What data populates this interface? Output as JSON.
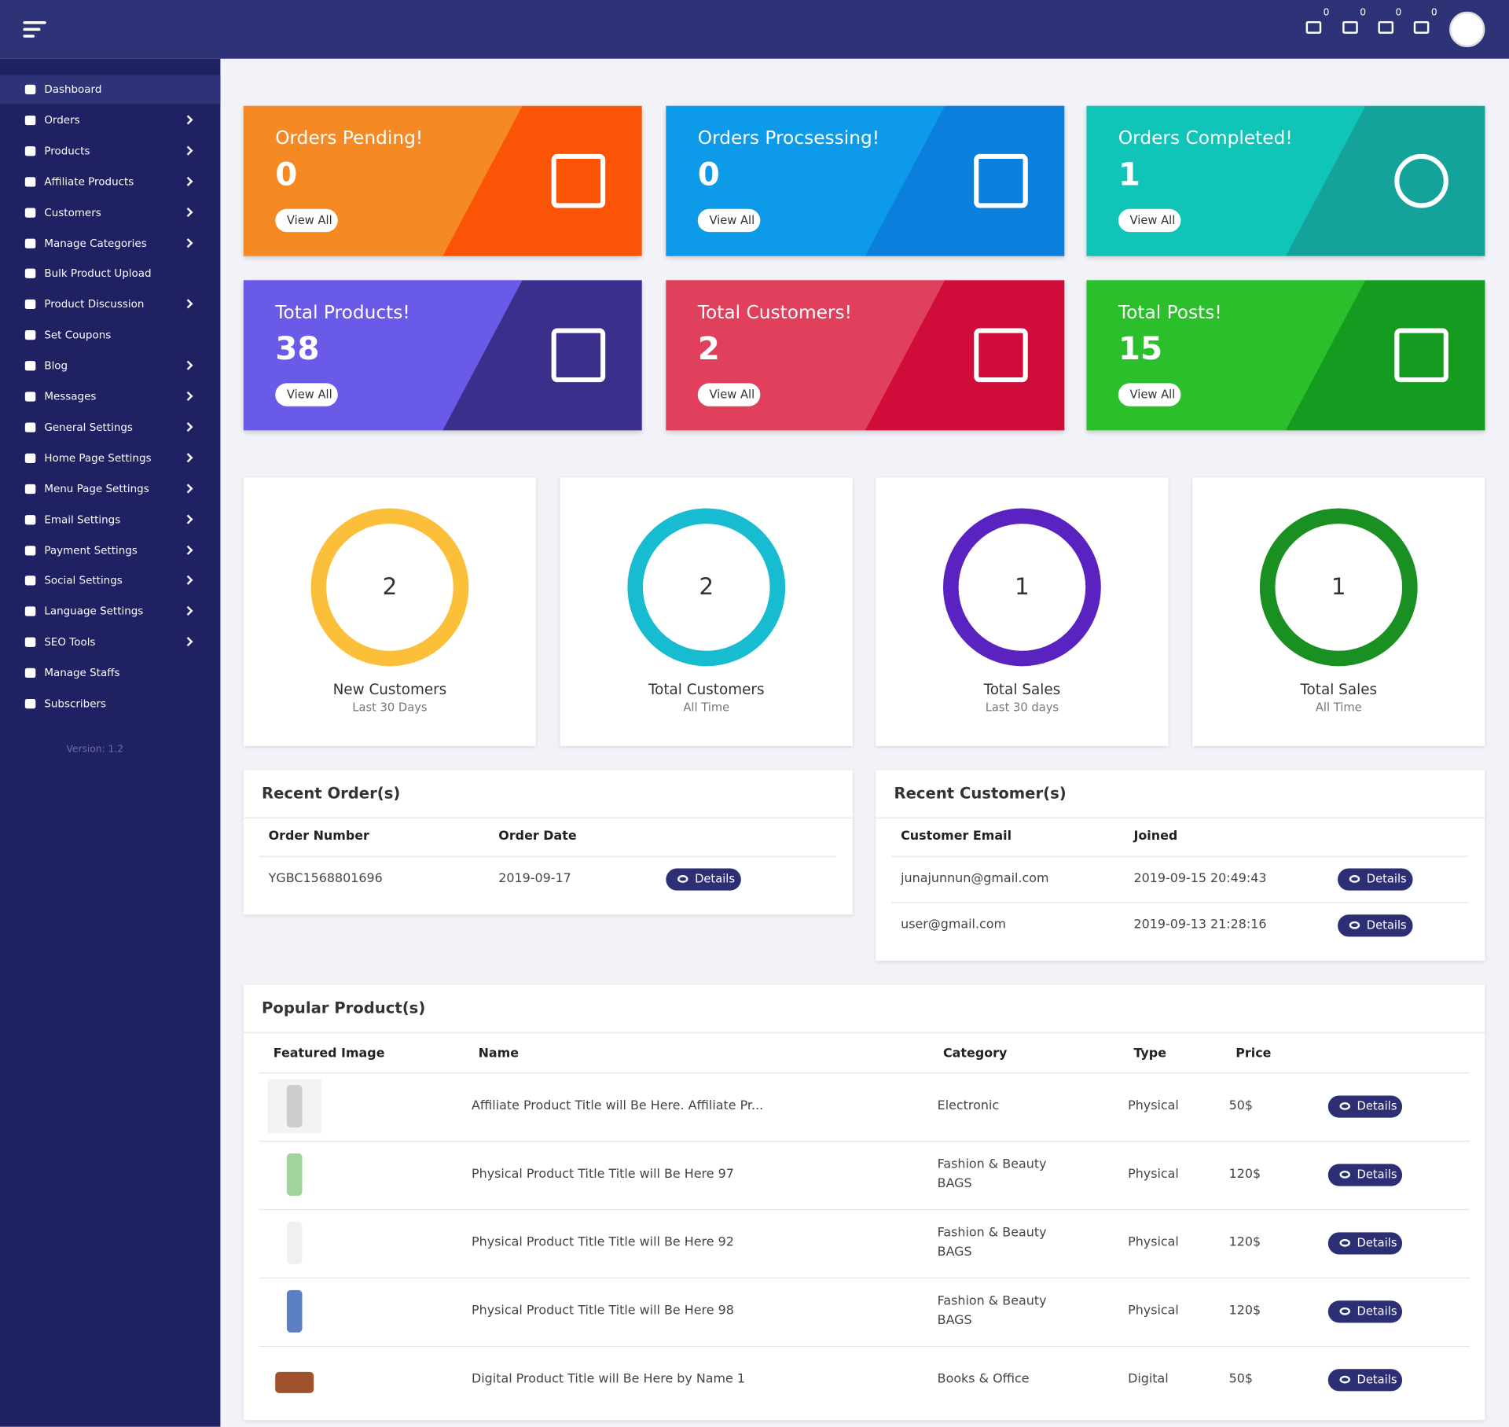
{
  "header": {
    "badges": [
      0,
      0,
      0,
      0
    ]
  },
  "sidebar": {
    "items": [
      {
        "label": "Dashboard",
        "submenu": false
      },
      {
        "label": "Orders",
        "submenu": true
      },
      {
        "label": "Products",
        "submenu": true
      },
      {
        "label": "Affiliate Products",
        "submenu": true
      },
      {
        "label": "Customers",
        "submenu": true
      },
      {
        "label": "Manage Categories",
        "submenu": true
      },
      {
        "label": "Bulk Product Upload",
        "submenu": false
      },
      {
        "label": "Product Discussion",
        "submenu": true
      },
      {
        "label": "Set Coupons",
        "submenu": false
      },
      {
        "label": "Blog",
        "submenu": true
      },
      {
        "label": "Messages",
        "submenu": true
      },
      {
        "label": "General Settings",
        "submenu": true
      },
      {
        "label": "Home Page Settings",
        "submenu": true
      },
      {
        "label": "Menu Page Settings",
        "submenu": true
      },
      {
        "label": "Email Settings",
        "submenu": true
      },
      {
        "label": "Payment Settings",
        "submenu": true
      },
      {
        "label": "Social Settings",
        "submenu": true
      },
      {
        "label": "Language Settings",
        "submenu": true
      },
      {
        "label": "SEO Tools",
        "submenu": true
      },
      {
        "label": "Manage Staffs",
        "submenu": false
      },
      {
        "label": "Subscribers",
        "submenu": false
      }
    ],
    "version": "Version: 1.2"
  },
  "stat_cards": [
    {
      "title": "Orders Pending!",
      "value": 0,
      "button": "View All"
    },
    {
      "title": "Orders Procsessing!",
      "value": 0,
      "button": "View All"
    },
    {
      "title": "Orders Completed!",
      "value": 1,
      "button": "View All"
    },
    {
      "title": "Total Products!",
      "value": 38,
      "button": "View All"
    },
    {
      "title": "Total Customers!",
      "value": 2,
      "button": "View All"
    },
    {
      "title": "Total Posts!",
      "value": 15,
      "button": "View All"
    }
  ],
  "summary_cards": [
    {
      "value": 2,
      "label": "New Customers",
      "period": "Last 30 Days"
    },
    {
      "value": 2,
      "label": "Total Customers",
      "period": "All Time"
    },
    {
      "value": 1,
      "label": "Total Sales",
      "period": "Last 30 days"
    },
    {
      "value": 1,
      "label": "Total Sales",
      "period": "All Time"
    }
  ],
  "recent_orders": {
    "title": "Recent Order(s)",
    "columns": [
      "Order Number",
      "Order Date"
    ],
    "rows": [
      {
        "number": "YGBC1568801696",
        "date": "2019-09-17",
        "action": "Details"
      }
    ]
  },
  "recent_customers": {
    "title": "Recent Customer(s)",
    "columns": [
      "Customer Email",
      "Joined"
    ],
    "rows": [
      {
        "email": "junajunnun@gmail.com",
        "joined": "2019-09-15 20:49:43",
        "action": "Details"
      },
      {
        "email": "user@gmail.com",
        "joined": "2019-09-13 21:28:16",
        "action": "Details"
      }
    ]
  },
  "popular_products": {
    "title": "Popular Product(s)",
    "columns": [
      "Featured Image",
      "Name",
      "Category",
      "Type",
      "Price"
    ],
    "rows": [
      {
        "name": "Affiliate Product Title will Be Here. Affiliate Pr...",
        "category": [
          "Electronic"
        ],
        "type": "Physical",
        "price": "50$",
        "action": "Details"
      },
      {
        "name": "Physical Product Title Title will Be Here 97",
        "category": [
          "Fashion & Beauty",
          "BAGS"
        ],
        "type": "Physical",
        "price": "120$",
        "action": "Details"
      },
      {
        "name": "Physical Product Title Title will Be Here 92",
        "category": [
          "Fashion & Beauty",
          "BAGS"
        ],
        "type": "Physical",
        "price": "120$",
        "action": "Details"
      },
      {
        "name": "Physical Product Title Title will Be Here 98",
        "category": [
          "Fashion & Beauty",
          "BAGS"
        ],
        "type": "Physical",
        "price": "120$",
        "action": "Details"
      },
      {
        "name": "Digital Product Title will Be Here by Name 1",
        "category": [
          "Books & Office"
        ],
        "type": "Digital",
        "price": "50$",
        "action": "Details"
      }
    ]
  }
}
